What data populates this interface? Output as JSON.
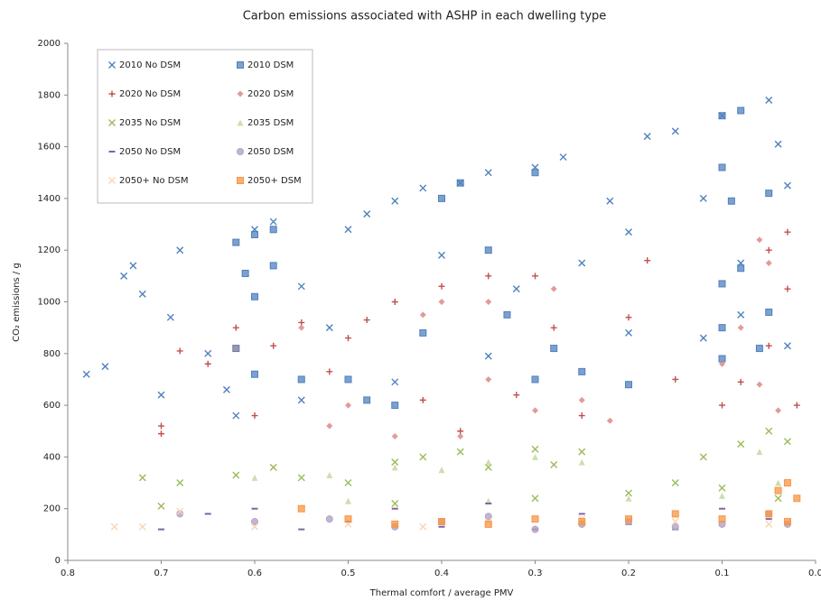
{
  "chart_data": {
    "type": "scatter",
    "title": "Carbon emissions associated with ASHP in each dwelling type",
    "x_label": "Thermal comfort / average PMV",
    "y_label": "CO₂ emissions / g",
    "xlim": [
      0.8,
      0
    ],
    "ylim": [
      0,
      2000
    ],
    "xticks": [
      0.8,
      0.7,
      0.6,
      0.5,
      0.4,
      0.3,
      0.2,
      0.1,
      {
        "value": 0,
        "label": "0.0"
      }
    ],
    "yticks": [
      0,
      200,
      400,
      600,
      800,
      1000,
      1200,
      1400,
      1600,
      1800,
      2000
    ],
    "grid": false,
    "series": [
      {
        "name": "2010 No DSM",
        "color": "#4f81bd",
        "marker": "x",
        "x": [
          0.78,
          0.76,
          0.74,
          0.73,
          0.72,
          0.7,
          0.69,
          0.68,
          0.65,
          0.63,
          0.6,
          0.58,
          0.55,
          0.52,
          0.5,
          0.48,
          0.45,
          0.42,
          0.4,
          0.38,
          0.35,
          0.32,
          0.3,
          0.27,
          0.25,
          0.22,
          0.2,
          0.18,
          0.15,
          0.12,
          0.1,
          0.08,
          0.05,
          0.04,
          0.03,
          0.03,
          0.08,
          0.12,
          0.2,
          0.35,
          0.45,
          0.55,
          0.62
        ],
        "values": [
          720,
          750,
          1100,
          1140,
          1030,
          640,
          940,
          1200,
          800,
          660,
          1280,
          1310,
          1060,
          900,
          1280,
          1340,
          1390,
          1440,
          1180,
          1460,
          1500,
          1050,
          1520,
          1560,
          1150,
          1390,
          1270,
          1640,
          1660,
          1400,
          1720,
          1150,
          1780,
          1610,
          1450,
          830,
          950,
          860,
          880,
          790,
          690,
          620,
          560
        ]
      },
      {
        "name": "2010 DSM",
        "color": "#4f81bd",
        "marker": "square",
        "x": [
          0.62,
          0.6,
          0.58,
          0.61,
          0.58,
          0.6,
          0.62,
          0.6,
          0.55,
          0.5,
          0.48,
          0.45,
          0.42,
          0.4,
          0.38,
          0.35,
          0.33,
          0.3,
          0.3,
          0.28,
          0.25,
          0.2,
          0.1,
          0.08,
          0.1,
          0.09,
          0.1,
          0.08,
          0.1,
          0.05,
          0.1,
          0.06,
          0.05
        ],
        "values": [
          1230,
          1260,
          1280,
          1110,
          1140,
          1020,
          820,
          720,
          700,
          700,
          620,
          600,
          880,
          1400,
          1460,
          1200,
          950,
          1500,
          700,
          820,
          730,
          680,
          1720,
          1740,
          1520,
          1390,
          1070,
          1130,
          900,
          960,
          780,
          820,
          1420
        ]
      },
      {
        "name": "2020 No DSM",
        "color": "#c0504d",
        "marker": "plus",
        "x": [
          0.7,
          0.7,
          0.68,
          0.65,
          0.62,
          0.6,
          0.58,
          0.55,
          0.52,
          0.5,
          0.48,
          0.45,
          0.42,
          0.4,
          0.38,
          0.35,
          0.32,
          0.3,
          0.28,
          0.25,
          0.2,
          0.18,
          0.15,
          0.1,
          0.08,
          0.05,
          0.03,
          0.03,
          0.02,
          0.05
        ],
        "values": [
          520,
          490,
          810,
          760,
          900,
          560,
          830,
          920,
          730,
          860,
          930,
          1000,
          620,
          1060,
          500,
          1100,
          640,
          1100,
          900,
          560,
          940,
          1160,
          700,
          600,
          690,
          1200,
          1270,
          1050,
          600,
          830
        ]
      },
      {
        "name": "2020 DSM",
        "color": "#d9827f",
        "marker": "diamond",
        "x": [
          0.62,
          0.55,
          0.52,
          0.5,
          0.45,
          0.42,
          0.4,
          0.38,
          0.35,
          0.3,
          0.28,
          0.25,
          0.22,
          0.1,
          0.08,
          0.06,
          0.05,
          0.04,
          0.06,
          0.35
        ],
        "values": [
          820,
          900,
          520,
          600,
          480,
          950,
          1000,
          480,
          700,
          580,
          1050,
          620,
          540,
          760,
          900,
          1240,
          1150,
          580,
          680,
          1000
        ]
      },
      {
        "name": "2035 No DSM",
        "color": "#9bbb59",
        "marker": "x",
        "x": [
          0.72,
          0.7,
          0.68,
          0.62,
          0.58,
          0.55,
          0.5,
          0.45,
          0.42,
          0.38,
          0.35,
          0.3,
          0.28,
          0.25,
          0.2,
          0.15,
          0.12,
          0.1,
          0.08,
          0.05,
          0.03,
          0.04,
          0.3,
          0.45
        ],
        "values": [
          320,
          210,
          300,
          330,
          360,
          320,
          300,
          380,
          400,
          420,
          360,
          430,
          370,
          420,
          260,
          300,
          400,
          280,
          450,
          500,
          460,
          240,
          240,
          220
        ]
      },
      {
        "name": "2035 DSM",
        "color": "#c3d69b",
        "marker": "triangle",
        "x": [
          0.6,
          0.52,
          0.45,
          0.4,
          0.35,
          0.3,
          0.25,
          0.2,
          0.1,
          0.06,
          0.04,
          0.5,
          0.35
        ],
        "values": [
          320,
          330,
          360,
          350,
          380,
          400,
          380,
          240,
          250,
          420,
          300,
          230,
          230
        ]
      },
      {
        "name": "2050 No DSM",
        "color": "#8064a2",
        "marker": "dash",
        "x": [
          0.7,
          0.65,
          0.6,
          0.55,
          0.5,
          0.45,
          0.4,
          0.35,
          0.3,
          0.25,
          0.2,
          0.15,
          0.1,
          0.05,
          0.03
        ],
        "values": [
          120,
          180,
          200,
          120,
          150,
          200,
          130,
          220,
          120,
          180,
          140,
          120,
          200,
          160,
          140
        ]
      },
      {
        "name": "2050 DSM",
        "color": "#b3a2c7",
        "marker": "circle",
        "x": [
          0.68,
          0.6,
          0.52,
          0.45,
          0.4,
          0.35,
          0.3,
          0.25,
          0.2,
          0.15,
          0.1,
          0.05,
          0.03
        ],
        "values": [
          180,
          150,
          160,
          130,
          150,
          170,
          120,
          140,
          150,
          130,
          140,
          180,
          140
        ]
      },
      {
        "name": "2050+ No DSM",
        "color": "#fbd4b4",
        "marker": "x",
        "x": [
          0.75,
          0.72,
          0.68,
          0.6,
          0.5,
          0.42,
          0.35,
          0.25,
          0.15,
          0.05
        ],
        "values": [
          130,
          130,
          190,
          130,
          140,
          130,
          150,
          160,
          150,
          140
        ]
      },
      {
        "name": "2050+ DSM",
        "color": "#f79646",
        "marker": "square",
        "x": [
          0.55,
          0.5,
          0.45,
          0.4,
          0.35,
          0.3,
          0.25,
          0.2,
          0.15,
          0.1,
          0.05,
          0.03,
          0.03,
          0.04,
          0.02
        ],
        "values": [
          200,
          160,
          140,
          150,
          140,
          160,
          150,
          160,
          180,
          160,
          180,
          150,
          300,
          270,
          240
        ]
      }
    ]
  }
}
